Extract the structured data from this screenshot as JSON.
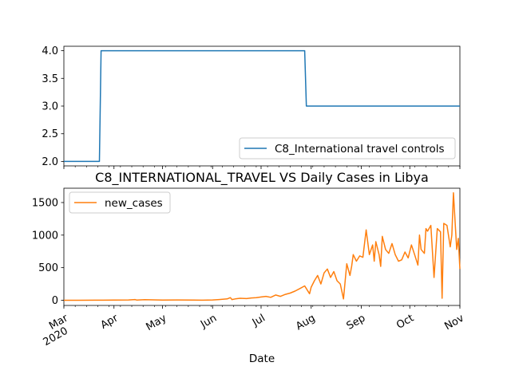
{
  "chart_data": [
    {
      "type": "line",
      "title": "",
      "xlabel": "",
      "ylabel": "",
      "ylim": [
        1.92,
        4.08
      ],
      "yticks": [
        "2.0",
        "2.5",
        "3.0",
        "3.5",
        "4.0"
      ],
      "ytick_values": [
        2.0,
        2.5,
        3.0,
        3.5,
        4.0
      ],
      "xlim": [
        "2020-03-01",
        "2020-11-01"
      ],
      "grid": false,
      "legend": {
        "position": "lower right"
      },
      "series": [
        {
          "name": "C8_International travel controls",
          "color": "#1f77b4",
          "x": [
            "2020-03-01",
            "2020-03-23",
            "2020-03-24",
            "2020-07-28",
            "2020-07-29",
            "2020-11-01"
          ],
          "values": [
            2,
            2,
            4,
            4,
            3,
            3
          ]
        }
      ]
    },
    {
      "type": "line",
      "title": "C8_INTERNATIONAL_TRAVEL VS Daily Cases in Libya",
      "xlabel": "Date",
      "ylabel": "",
      "ylim": [
        -80,
        1720
      ],
      "yticks": [
        "0",
        "500",
        "1000",
        "1500"
      ],
      "ytick_values": [
        0,
        500,
        1000,
        1500
      ],
      "xlim": [
        "2020-03-01",
        "2020-11-01"
      ],
      "xticks": [
        {
          "date": "2020-03-01",
          "label": "Mar",
          "sublabel": "2020"
        },
        {
          "date": "2020-04-01",
          "label": "Apr",
          "sublabel": ""
        },
        {
          "date": "2020-05-01",
          "label": "May",
          "sublabel": ""
        },
        {
          "date": "2020-06-01",
          "label": "Jun",
          "sublabel": ""
        },
        {
          "date": "2020-07-01",
          "label": "Jul",
          "sublabel": ""
        },
        {
          "date": "2020-08-01",
          "label": "Aug",
          "sublabel": ""
        },
        {
          "date": "2020-09-01",
          "label": "Sep",
          "sublabel": ""
        },
        {
          "date": "2020-10-01",
          "label": "Oct",
          "sublabel": ""
        },
        {
          "date": "2020-11-01",
          "label": "Nov",
          "sublabel": ""
        }
      ],
      "grid": false,
      "legend": {
        "position": "upper left"
      },
      "series": [
        {
          "name": "new_cases",
          "color": "#ff7f0e",
          "x": [
            "2020-03-01",
            "2020-03-10",
            "2020-03-20",
            "2020-03-25",
            "2020-04-01",
            "2020-04-10",
            "2020-04-14",
            "2020-04-15",
            "2020-04-20",
            "2020-05-01",
            "2020-05-10",
            "2020-05-20",
            "2020-05-25",
            "2020-06-01",
            "2020-06-05",
            "2020-06-10",
            "2020-06-12",
            "2020-06-13",
            "2020-06-15",
            "2020-06-18",
            "2020-06-22",
            "2020-06-25",
            "2020-06-28",
            "2020-07-01",
            "2020-07-04",
            "2020-07-07",
            "2020-07-10",
            "2020-07-13",
            "2020-07-16",
            "2020-07-19",
            "2020-07-22",
            "2020-07-25",
            "2020-07-28",
            "2020-07-31",
            "2020-08-01",
            "2020-08-03",
            "2020-08-05",
            "2020-08-07",
            "2020-08-09",
            "2020-08-11",
            "2020-08-13",
            "2020-08-15",
            "2020-08-17",
            "2020-08-19",
            "2020-08-21",
            "2020-08-23",
            "2020-08-25",
            "2020-08-26",
            "2020-08-27",
            "2020-08-29",
            "2020-08-31",
            "2020-09-02",
            "2020-09-04",
            "2020-09-06",
            "2020-09-08",
            "2020-09-09",
            "2020-09-10",
            "2020-09-12",
            "2020-09-13",
            "2020-09-14",
            "2020-09-16",
            "2020-09-18",
            "2020-09-20",
            "2020-09-22",
            "2020-09-24",
            "2020-09-26",
            "2020-09-28",
            "2020-09-30",
            "2020-10-02",
            "2020-10-04",
            "2020-10-06",
            "2020-10-07",
            "2020-10-08",
            "2020-10-10",
            "2020-10-11",
            "2020-10-12",
            "2020-10-14",
            "2020-10-16",
            "2020-10-18",
            "2020-10-20",
            "2020-10-21",
            "2020-10-22",
            "2020-10-24",
            "2020-10-26",
            "2020-10-27",
            "2020-10-28",
            "2020-10-30",
            "2020-10-31",
            "2020-11-01"
          ],
          "values": [
            0,
            0,
            1,
            1,
            2,
            5,
            10,
            3,
            8,
            2,
            4,
            3,
            1,
            5,
            10,
            20,
            40,
            10,
            20,
            30,
            25,
            35,
            40,
            50,
            60,
            45,
            80,
            60,
            90,
            110,
            140,
            180,
            220,
            100,
            200,
            300,
            380,
            250,
            420,
            480,
            350,
            440,
            300,
            250,
            20,
            560,
            380,
            520,
            700,
            600,
            680,
            660,
            1080,
            700,
            850,
            600,
            900,
            700,
            520,
            980,
            780,
            720,
            870,
            700,
            600,
            620,
            740,
            650,
            850,
            700,
            540,
            1000,
            780,
            720,
            1100,
            1060,
            1150,
            350,
            1100,
            1050,
            30,
            1180,
            1150,
            820,
            1000,
            1650,
            780,
            950,
            480
          ]
        }
      ]
    }
  ]
}
